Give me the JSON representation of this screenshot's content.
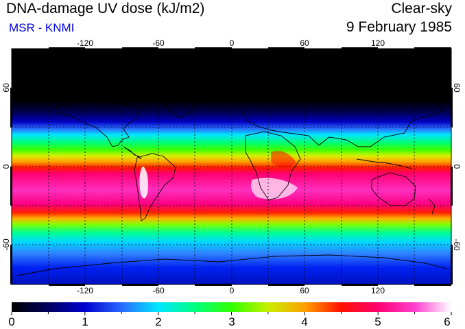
{
  "header": {
    "title": "DNA-damage UV dose (kJ/m2)",
    "subtitle": "MSR - KNMI",
    "condition": "Clear-sky",
    "date": "9 February 1985"
  },
  "colors": {
    "subtitle": "#0000dd",
    "frame": "#000000",
    "ramp": [
      "#000000",
      "#000060",
      "#0000d0",
      "#2a6aff",
      "#00e6ff",
      "#00ff80",
      "#30ff00",
      "#c8f000",
      "#ffa000",
      "#ff1000",
      "#ff0070",
      "#ff40d0",
      "#ffffff"
    ]
  },
  "map": {
    "lon_ticks": [
      -120,
      -60,
      0,
      60,
      120
    ],
    "lat_ticks": [
      60,
      0,
      -60
    ],
    "lon_range": [
      -180,
      180
    ],
    "lat_range": [
      -90,
      90
    ]
  },
  "colorbar": {
    "labels": [
      0,
      1,
      2,
      3,
      4,
      5,
      6
    ],
    "range": [
      0,
      6
    ]
  }
}
